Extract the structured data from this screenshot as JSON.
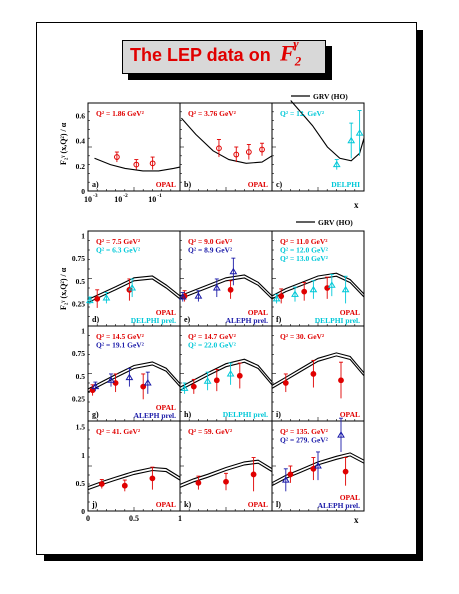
{
  "page": {
    "title": "The LEP data on",
    "title_symbol": "F",
    "title_sub": "2",
    "title_sup": "γ",
    "colors": {
      "opal": "#e00000",
      "aleph": "#1a1aa8",
      "delphi": "#00c8d8",
      "theory": "#000000",
      "title_bg": "#d8d8d8"
    }
  },
  "legend": {
    "label": "GRV (HO)"
  },
  "y_label": "F₂ᵞ (x,Q²) / α",
  "x_axis_label": "x",
  "chart_data": [
    {
      "type": "scatter",
      "panel": "a",
      "group": "top",
      "xscale": "log",
      "xlim": [
        0.001,
        0.3
      ],
      "ylim": [
        0,
        0.7
      ],
      "x_ticks": [
        "10",
        "10",
        "10"
      ],
      "x_tick_exps": [
        "-3",
        "-2",
        "-1"
      ],
      "y_ticks": [
        "0",
        "0.2",
        "0.4",
        "0.6"
      ],
      "q2_labels": [
        {
          "text": "Q² = 1.86 GeV²",
          "color": "#e00000"
        }
      ],
      "id_label": "a)",
      "exp_label": "OPAL",
      "exp_color": "#e00000",
      "series": [
        {
          "name": "OPAL",
          "color": "#e00000",
          "marker": "circle",
          "x": [
            0.006,
            0.02,
            0.055
          ],
          "y": [
            0.27,
            0.21,
            0.22
          ],
          "err": [
            0.04,
            0.04,
            0.05
          ]
        }
      ],
      "curves": [
        {
          "x": [
            0.0015,
            0.004,
            0.01,
            0.03,
            0.08,
            0.2,
            0.3
          ],
          "y": [
            0.26,
            0.21,
            0.18,
            0.16,
            0.16,
            0.18,
            0.19
          ]
        }
      ]
    },
    {
      "type": "scatter",
      "panel": "b",
      "group": "top",
      "xscale": "log",
      "xlim": [
        0.001,
        0.6
      ],
      "ylim": [
        0,
        0.7
      ],
      "q2_labels": [
        {
          "text": "Q² = 3.76 GeV²",
          "color": "#e00000"
        }
      ],
      "id_label": "b)",
      "exp_label": "OPAL",
      "exp_color": "#e00000",
      "series": [
        {
          "name": "OPAL",
          "color": "#e00000",
          "marker": "circle",
          "x": [
            0.015,
            0.05,
            0.12,
            0.3
          ],
          "y": [
            0.34,
            0.29,
            0.31,
            0.33
          ],
          "err": [
            0.07,
            0.06,
            0.06,
            0.05
          ]
        }
      ],
      "curves": [
        {
          "x": [
            0.0011,
            0.003,
            0.01,
            0.03,
            0.1,
            0.3,
            0.6
          ],
          "y": [
            0.58,
            0.45,
            0.32,
            0.25,
            0.22,
            0.23,
            0.28
          ]
        }
      ]
    },
    {
      "type": "scatter",
      "panel": "c",
      "group": "top",
      "xscale": "log",
      "xlim": [
        0.001,
        0.9
      ],
      "ylim": [
        0,
        0.7
      ],
      "q2_labels": [
        {
          "text": "Q² = 12. GeV²",
          "color": "#00c8d8"
        }
      ],
      "id_label": "c)",
      "exp_label": "DELPHI",
      "exp_color": "#00c8d8",
      "series": [
        {
          "name": "DELPHI",
          "color": "#00c8d8",
          "marker": "triangle",
          "x": [
            0.12,
            0.35,
            0.65
          ],
          "y": [
            0.21,
            0.4,
            0.46
          ],
          "err": [
            0.04,
            0.14,
            0.18
          ]
        }
      ],
      "curves": [
        {
          "x": [
            0.004,
            0.02,
            0.06,
            0.15,
            0.35,
            0.65,
            0.9
          ],
          "y": [
            0.72,
            0.52,
            0.35,
            0.26,
            0.24,
            0.3,
            0.42
          ]
        }
      ]
    },
    {
      "type": "scatter",
      "panel": "d",
      "group": "lin",
      "xlim": [
        0,
        1
      ],
      "ylim": [
        0,
        1.05
      ],
      "y_ticks": [
        "0.25",
        "0.5",
        "0.75",
        "1"
      ],
      "q2_labels": [
        {
          "text": "Q² = 7.5 GeV²",
          "color": "#e00000"
        },
        {
          "text": "Q² = 6.3 GeV²",
          "color": "#00c8d8"
        }
      ],
      "id_label": "d)",
      "exp_label": "OPAL",
      "exp_color": "#e00000",
      "exp_label2": "DELPHI prel.",
      "exp_color2": "#00c8d8",
      "series": [
        {
          "name": "OPAL",
          "color": "#e00000",
          "marker": "circle",
          "x": [
            0.1,
            0.45
          ],
          "y": [
            0.3,
            0.4
          ],
          "err": [
            0.1,
            0.12
          ]
        },
        {
          "name": "DELPHI",
          "color": "#00c8d8",
          "marker": "triangle",
          "x": [
            0.02,
            0.2,
            0.48
          ],
          "y": [
            0.28,
            0.31,
            0.42
          ],
          "err": [
            0.04,
            0.06,
            0.1
          ]
        }
      ],
      "curves": [
        {
          "x": [
            0,
            0.15,
            0.3,
            0.5,
            0.7,
            0.85,
            1
          ],
          "y": [
            0.26,
            0.33,
            0.4,
            0.5,
            0.52,
            0.42,
            0.3
          ]
        }
      ]
    },
    {
      "type": "scatter",
      "panel": "e",
      "group": "lin",
      "xlim": [
        0,
        1
      ],
      "ylim": [
        0,
        1.05
      ],
      "q2_labels": [
        {
          "text": "Q² = 9.0 GeV²",
          "color": "#e00000"
        },
        {
          "text": "Q² = 8.9 GeV²",
          "color": "#1a1aa8"
        }
      ],
      "id_label": "e)",
      "exp_label": "OPAL",
      "exp_color": "#e00000",
      "exp_label2": "ALEPH prel.",
      "exp_color2": "#1a1aa8",
      "series": [
        {
          "name": "OPAL",
          "color": "#e00000",
          "marker": "circle",
          "x": [
            0.05,
            0.55
          ],
          "y": [
            0.33,
            0.4
          ],
          "err": [
            0.06,
            0.1
          ]
        },
        {
          "name": "ALEPH",
          "color": "#1a1aa8",
          "marker": "triangle",
          "x": [
            0.03,
            0.2,
            0.4,
            0.58
          ],
          "y": [
            0.32,
            0.33,
            0.42,
            0.6
          ],
          "err": [
            0.05,
            0.06,
            0.1,
            0.15
          ]
        }
      ],
      "curves": [
        {
          "x": [
            0,
            0.15,
            0.3,
            0.5,
            0.7,
            0.85,
            1
          ],
          "y": [
            0.3,
            0.36,
            0.42,
            0.5,
            0.53,
            0.45,
            0.3
          ]
        }
      ]
    },
    {
      "type": "scatter",
      "panel": "f",
      "group": "lin",
      "xlim": [
        0,
        1
      ],
      "ylim": [
        0,
        1.05
      ],
      "q2_labels": [
        {
          "text": "Q² = 11.0 GeV²",
          "color": "#e00000"
        },
        {
          "text": "Q² = 12.0 GeV²",
          "color": "#00c8d8"
        },
        {
          "text": "Q² = 13.0 GeV²",
          "color": "#00c8d8"
        }
      ],
      "id_label": "f)",
      "exp_label": "OPAL",
      "exp_color": "#e00000",
      "exp_label2": "DELPHI prel.",
      "exp_color2": "#00c8d8",
      "series": [
        {
          "name": "OPAL",
          "color": "#e00000",
          "marker": "circle",
          "x": [
            0.1,
            0.35,
            0.6
          ],
          "y": [
            0.33,
            0.38,
            0.42
          ],
          "err": [
            0.08,
            0.1,
            0.12
          ]
        },
        {
          "name": "DELPHI",
          "color": "#00c8d8",
          "marker": "triangle",
          "x": [
            0.05,
            0.25,
            0.45,
            0.65,
            0.8
          ],
          "y": [
            0.3,
            0.35,
            0.4,
            0.45,
            0.4
          ],
          "err": [
            0.05,
            0.08,
            0.1,
            0.12,
            0.15
          ]
        }
      ],
      "curves": [
        {
          "x": [
            0,
            0.15,
            0.3,
            0.5,
            0.7,
            0.85,
            1
          ],
          "y": [
            0.3,
            0.38,
            0.44,
            0.52,
            0.55,
            0.48,
            0.32
          ]
        }
      ]
    },
    {
      "type": "scatter",
      "panel": "g",
      "group": "lin",
      "xlim": [
        0,
        1
      ],
      "ylim": [
        0,
        1.05
      ],
      "y_ticks": [
        "0.25",
        "0.5",
        "0.75",
        "1"
      ],
      "q2_labels": [
        {
          "text": "Q² = 14.5 GeV²",
          "color": "#e00000"
        },
        {
          "text": "Q² = 19.1 GeV²",
          "color": "#1a1aa8"
        }
      ],
      "id_label": "g)",
      "exp_label": "OPAL",
      "exp_color": "#e00000",
      "exp_label2": "ALEPH prel.",
      "exp_color2": "#1a1aa8",
      "series": [
        {
          "name": "OPAL",
          "color": "#e00000",
          "marker": "circle",
          "x": [
            0.05,
            0.3,
            0.6
          ],
          "y": [
            0.34,
            0.42,
            0.38
          ],
          "err": [
            0.06,
            0.1,
            0.14
          ]
        },
        {
          "name": "ALEPH",
          "color": "#1a1aa8",
          "marker": "triangle",
          "x": [
            0.08,
            0.25,
            0.45,
            0.65
          ],
          "y": [
            0.38,
            0.45,
            0.48,
            0.42
          ],
          "err": [
            0.05,
            0.07,
            0.1,
            0.12
          ]
        }
      ],
      "curves": [
        {
          "x": [
            0,
            0.15,
            0.3,
            0.5,
            0.7,
            0.85,
            1
          ],
          "y": [
            0.32,
            0.4,
            0.48,
            0.58,
            0.62,
            0.55,
            0.38
          ]
        }
      ]
    },
    {
      "type": "scatter",
      "panel": "h",
      "group": "lin",
      "xlim": [
        0,
        1
      ],
      "ylim": [
        0,
        1.05
      ],
      "q2_labels": [
        {
          "text": "Q² = 14.7 GeV²",
          "color": "#e00000"
        },
        {
          "text": "Q² = 22.0 GeV²",
          "color": "#00c8d8"
        }
      ],
      "id_label": "h)",
      "exp_label": "DELPHI prel.",
      "exp_color": "#00c8d8",
      "series": [
        {
          "name": "OPAL",
          "color": "#e00000",
          "marker": "circle",
          "x": [
            0.15,
            0.4,
            0.65
          ],
          "y": [
            0.38,
            0.45,
            0.5
          ],
          "err": [
            0.08,
            0.12,
            0.14
          ]
        },
        {
          "name": "DELPHI",
          "color": "#00c8d8",
          "marker": "triangle",
          "x": [
            0.05,
            0.3,
            0.55
          ],
          "y": [
            0.36,
            0.44,
            0.52
          ],
          "err": [
            0.06,
            0.1,
            0.12
          ]
        }
      ],
      "curves": [
        {
          "x": [
            0,
            0.15,
            0.3,
            0.5,
            0.7,
            0.85,
            1
          ],
          "y": [
            0.34,
            0.42,
            0.5,
            0.6,
            0.65,
            0.58,
            0.4
          ]
        }
      ]
    },
    {
      "type": "scatter",
      "panel": "i",
      "group": "lin",
      "xlim": [
        0,
        1
      ],
      "ylim": [
        0,
        1.05
      ],
      "q2_labels": [
        {
          "text": "Q² = 30. GeV²",
          "color": "#e00000"
        }
      ],
      "id_label": "i)",
      "exp_label": "OPAL",
      "exp_color": "#e00000",
      "series": [
        {
          "name": "OPAL",
          "color": "#e00000",
          "marker": "circle",
          "x": [
            0.15,
            0.45,
            0.75
          ],
          "y": [
            0.42,
            0.52,
            0.45
          ],
          "err": [
            0.1,
            0.15,
            0.2
          ]
        }
      ],
      "curves": [
        {
          "x": [
            0,
            0.15,
            0.3,
            0.5,
            0.7,
            0.85,
            1
          ],
          "y": [
            0.36,
            0.45,
            0.54,
            0.66,
            0.72,
            0.68,
            0.5
          ]
        }
      ]
    },
    {
      "type": "scatter",
      "panel": "j",
      "group": "bot",
      "xlim": [
        0,
        1
      ],
      "ylim": [
        0,
        1.6
      ],
      "y_ticks": [
        "0",
        "0.5",
        "1",
        "1.5"
      ],
      "x_ticks": [
        "0",
        "0.5",
        "1"
      ],
      "q2_labels": [
        {
          "text": "Q² = 41. GeV²",
          "color": "#e00000"
        }
      ],
      "id_label": "j)",
      "exp_label": "OPAL",
      "exp_color": "#e00000",
      "series": [
        {
          "name": "OPAL",
          "color": "#e00000",
          "marker": "circle",
          "x": [
            0.15,
            0.4,
            0.7
          ],
          "y": [
            0.48,
            0.45,
            0.58
          ],
          "err": [
            0.08,
            0.1,
            0.2
          ]
        }
      ],
      "curves": [
        {
          "x": [
            0,
            0.15,
            0.3,
            0.5,
            0.7,
            0.85,
            1
          ],
          "y": [
            0.38,
            0.47,
            0.55,
            0.65,
            0.72,
            0.7,
            0.55
          ]
        }
      ]
    },
    {
      "type": "scatter",
      "panel": "k",
      "group": "bot",
      "xlim": [
        0,
        1
      ],
      "ylim": [
        0,
        1.6
      ],
      "q2_labels": [
        {
          "text": "Q² = 59. GeV²",
          "color": "#e00000"
        }
      ],
      "id_label": "k)",
      "exp_label": "OPAL",
      "exp_color": "#e00000",
      "series": [
        {
          "name": "OPAL",
          "color": "#e00000",
          "marker": "circle",
          "x": [
            0.2,
            0.5,
            0.8
          ],
          "y": [
            0.5,
            0.52,
            0.65
          ],
          "err": [
            0.12,
            0.15,
            0.3
          ]
        }
      ],
      "curves": [
        {
          "x": [
            0,
            0.15,
            0.3,
            0.5,
            0.7,
            0.85,
            1
          ],
          "y": [
            0.42,
            0.52,
            0.6,
            0.72,
            0.82,
            0.85,
            0.7
          ]
        }
      ]
    },
    {
      "type": "scatter",
      "panel": "l",
      "group": "bot",
      "xlim": [
        0,
        1
      ],
      "ylim": [
        0,
        1.6
      ],
      "q2_labels": [
        {
          "text": "Q² = 135. GeV²",
          "color": "#e00000"
        },
        {
          "text": "Q² = 279. GeV²",
          "color": "#1a1aa8"
        }
      ],
      "id_label": "l)",
      "exp_label": "OPAL",
      "exp_color": "#e00000",
      "exp_label2": "ALEPH prel.",
      "exp_color2": "#1a1aa8",
      "series": [
        {
          "name": "OPAL",
          "color": "#e00000",
          "marker": "circle",
          "x": [
            0.2,
            0.45,
            0.8
          ],
          "y": [
            0.65,
            0.75,
            0.7
          ],
          "err": [
            0.15,
            0.2,
            0.25
          ]
        },
        {
          "name": "ALEPH",
          "color": "#1a1aa8",
          "marker": "triangle",
          "x": [
            0.15,
            0.5,
            0.75
          ],
          "y": [
            0.55,
            0.8,
            1.35
          ],
          "err": [
            0.2,
            0.25,
            0.3
          ]
        }
      ],
      "curves": [
        {
          "x": [
            0,
            0.15,
            0.3,
            0.5,
            0.7,
            0.85,
            1
          ],
          "y": [
            0.45,
            0.58,
            0.68,
            0.82,
            0.92,
            0.98,
            0.85
          ]
        }
      ]
    }
  ]
}
